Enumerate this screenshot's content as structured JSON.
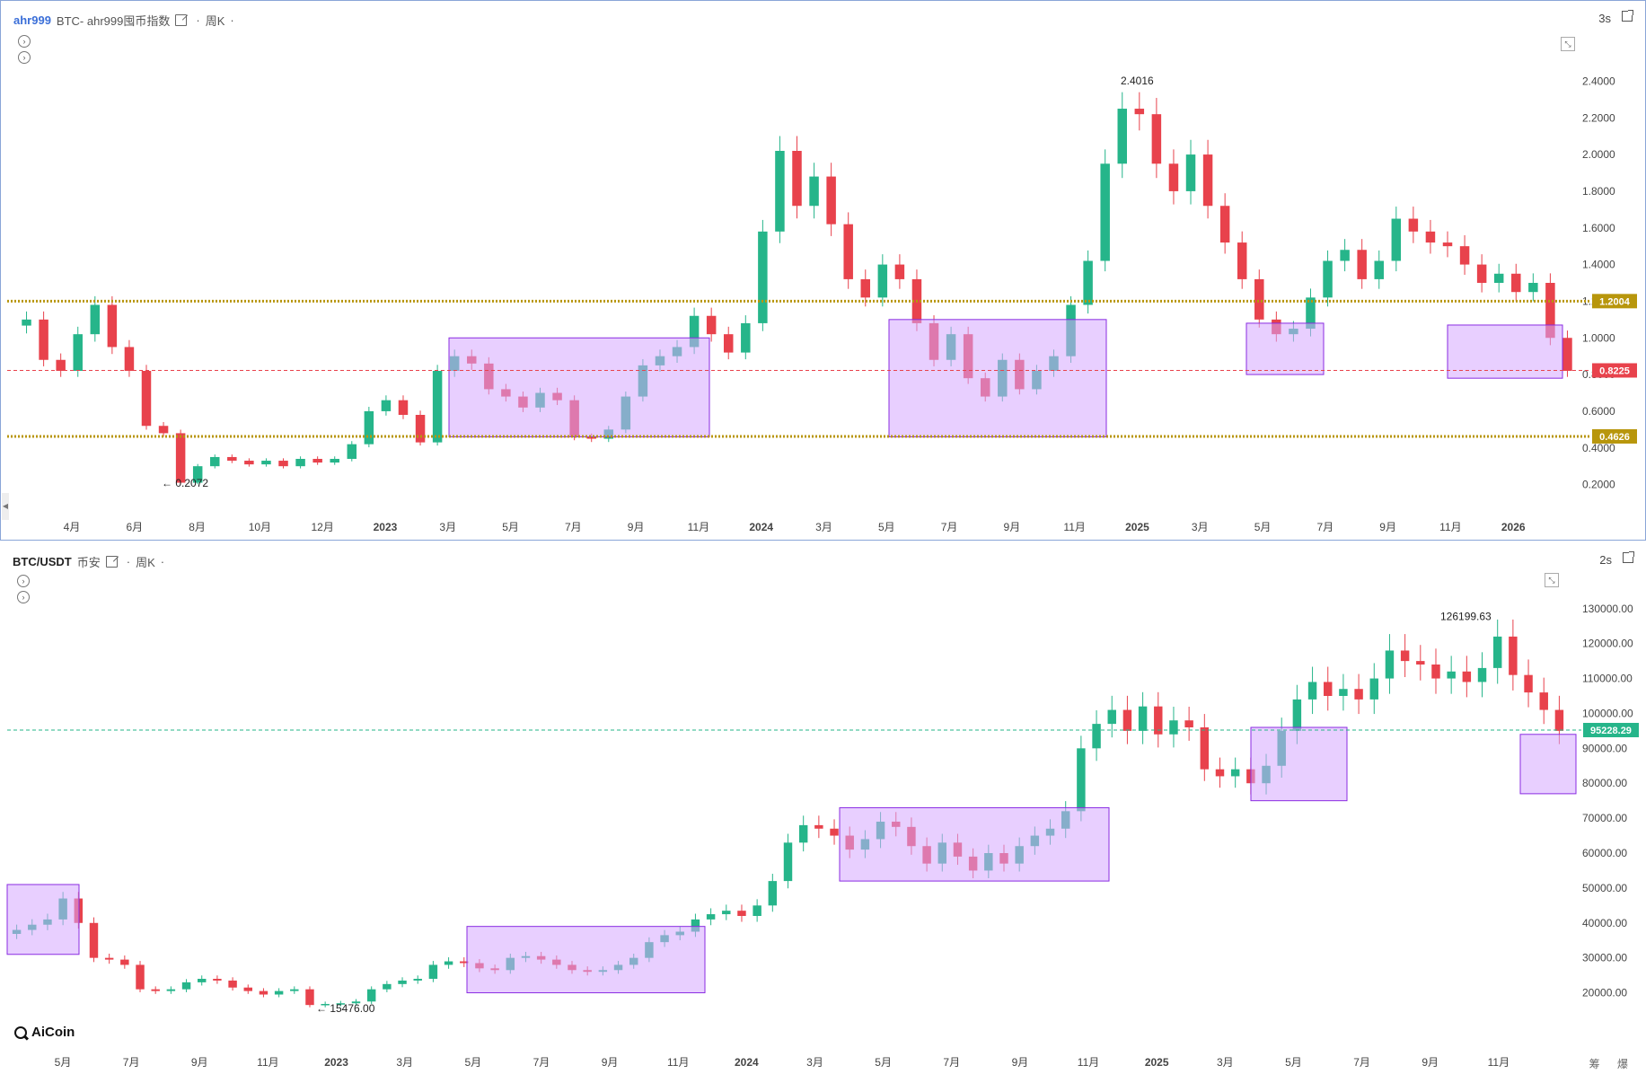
{
  "top": {
    "symbol": "ahr999",
    "title": "BTC- ahr999囤币指数",
    "period": "周K",
    "refresh": "3s",
    "max_label": "2.4016",
    "min_label": "0.2072",
    "y_ticks": [
      "2.4000",
      "2.2000",
      "2.0000",
      "1.8000",
      "1.6000",
      "1.4000",
      "1.2000",
      "1.0000",
      "0.8000",
      "0.6000",
      "0.4000",
      "0.2000"
    ],
    "x_labels": [
      "4月",
      "6月",
      "8月",
      "10月",
      "12月",
      "2023",
      "3月",
      "5月",
      "7月",
      "9月",
      "11月",
      "2024",
      "3月",
      "5月",
      "7月",
      "9月",
      "11月",
      "2025",
      "3月",
      "5月",
      "7月",
      "9月",
      "11月",
      "2026"
    ],
    "hlines": [
      {
        "value": "1.2004",
        "color": "#b8960c"
      },
      {
        "value": "0.8225",
        "color": "#e8424c"
      },
      {
        "value": "0.4626",
        "color": "#b8960c"
      }
    ]
  },
  "bottom": {
    "symbol": "BTC/USDT",
    "exchange": "币安",
    "period": "周K",
    "refresh": "2s",
    "max_label": "126199.63",
    "min_label": "15476.00",
    "price_label": "95228.29",
    "y_ticks": [
      "130000.00",
      "120000.00",
      "110000.00",
      "100000.00",
      "90000.00",
      "80000.00",
      "70000.00",
      "60000.00",
      "50000.00",
      "40000.00",
      "30000.00",
      "20000.00"
    ],
    "x_labels": [
      "5月",
      "7月",
      "9月",
      "11月",
      "2023",
      "3月",
      "5月",
      "7月",
      "9月",
      "11月",
      "2024",
      "3月",
      "5月",
      "7月",
      "9月",
      "11月",
      "2025",
      "3月",
      "5月",
      "7月",
      "9月",
      "11月"
    ],
    "corner": "筹 爆"
  },
  "logo": "AiCoin",
  "colors": {
    "up": "#26b58a",
    "down": "#e8424c",
    "box": "#d6a8ff",
    "box_edge": "#8a2be2",
    "accent": "#3b6fd8"
  },
  "chart_data": [
    {
      "type": "candlestick",
      "title": "BTC- ahr999囤币指数",
      "ylim": [
        0.1,
        2.5
      ],
      "series": [
        {
          "name": "ahr999",
          "values": [
            1.1,
            0.88,
            0.82,
            1.02,
            1.18,
            0.95,
            0.82,
            0.52,
            0.48,
            0.21,
            0.3,
            0.35,
            0.33,
            0.31,
            0.33,
            0.3,
            0.34,
            0.32,
            0.34,
            0.42,
            0.6,
            0.66,
            0.58,
            0.43,
            0.82,
            0.9,
            0.86,
            0.72,
            0.68,
            0.62,
            0.7,
            0.66,
            0.46,
            0.45,
            0.5,
            0.68,
            0.85,
            0.9,
            0.95,
            1.12,
            1.02,
            0.92,
            1.08,
            1.58,
            2.02,
            1.72,
            1.88,
            1.62,
            1.32,
            1.22,
            1.4,
            1.32,
            1.08,
            0.88,
            1.02,
            0.78,
            0.68,
            0.88,
            0.72,
            0.82,
            0.9,
            1.18,
            1.42,
            1.95,
            2.25,
            2.22,
            1.95,
            1.8,
            2.0,
            1.72,
            1.52,
            1.32,
            1.1,
            1.02,
            1.05,
            1.22,
            1.42,
            1.48,
            1.32,
            1.42,
            1.65,
            1.58,
            1.52,
            1.5,
            1.4,
            1.3,
            1.35,
            1.25,
            1.3,
            1.0,
            0.82
          ]
        }
      ],
      "annotations": {
        "max": 2.4016,
        "min": 0.2072,
        "hlines": [
          1.2004,
          0.8225,
          0.4626
        ]
      }
    },
    {
      "type": "candlestick",
      "title": "BTC/USDT 币安 周K",
      "ylim": [
        15000,
        132000
      ],
      "series": [
        {
          "name": "BTC/USDT",
          "values": [
            38000,
            39500,
            41000,
            47000,
            40000,
            30000,
            29500,
            28000,
            21000,
            20500,
            21000,
            23000,
            24000,
            23500,
            21500,
            20500,
            19500,
            20500,
            21000,
            16500,
            16800,
            17000,
            17500,
            21000,
            22500,
            23500,
            24000,
            28000,
            29000,
            28500,
            27000,
            26500,
            30000,
            30500,
            29500,
            28000,
            26500,
            26000,
            26500,
            28000,
            30000,
            34500,
            36500,
            37500,
            41000,
            42500,
            43500,
            42000,
            45000,
            52000,
            63000,
            68000,
            67000,
            65000,
            61000,
            64000,
            69000,
            67500,
            62000,
            57000,
            63000,
            59000,
            55000,
            60000,
            57000,
            62000,
            65000,
            67000,
            72000,
            90000,
            97000,
            101000,
            95000,
            102000,
            94000,
            98000,
            96000,
            84000,
            82000,
            84000,
            80000,
            85000,
            95000,
            104000,
            109000,
            105000,
            107000,
            104000,
            110000,
            118000,
            115000,
            114000,
            110000,
            112000,
            109000,
            113000,
            122000,
            111000,
            106000,
            101000,
            95000
          ]
        }
      ],
      "annotations": {
        "max": 126199.63,
        "min": 15476.0,
        "last": 95228.29
      }
    }
  ]
}
